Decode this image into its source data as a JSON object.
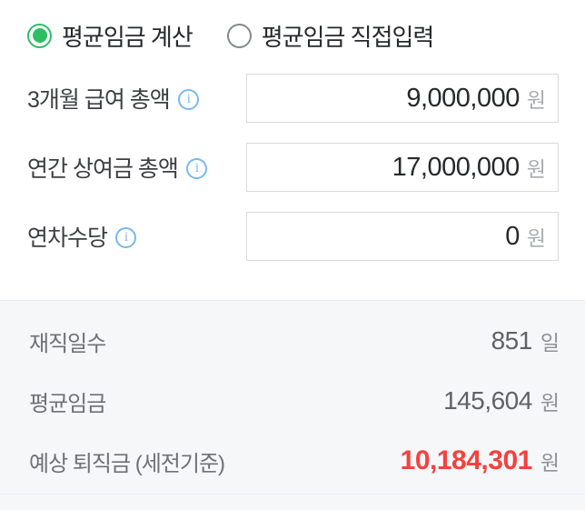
{
  "calculator": {
    "mode_options": [
      {
        "label": "평균임금 계산",
        "selected": true
      },
      {
        "label": "평균임금 직접입력",
        "selected": false
      }
    ],
    "info_icon_glyph": "i",
    "fields": [
      {
        "label": "3개월 급여 총액",
        "value": "9,000,000",
        "unit": "원"
      },
      {
        "label": "연간 상여금 총액",
        "value": "17,000,000",
        "unit": "원"
      },
      {
        "label": "연차수당",
        "value": "0",
        "unit": "원"
      }
    ],
    "results": [
      {
        "label": "재직일수",
        "value": "851",
        "unit": "일",
        "highlight": false
      },
      {
        "label": "평균임금",
        "value": "145,604",
        "unit": "원",
        "highlight": false
      },
      {
        "label": "예상 퇴직금 (세전기준)",
        "value": "10,184,301",
        "unit": "원",
        "highlight": true
      }
    ],
    "colors": {
      "radio_selected_green": "#2dbe64",
      "info_icon_blue": "#77b9f4",
      "highlight_red": "#f5413d",
      "result_background": "#f5f7f9",
      "input_border": "#d8dadd"
    }
  }
}
